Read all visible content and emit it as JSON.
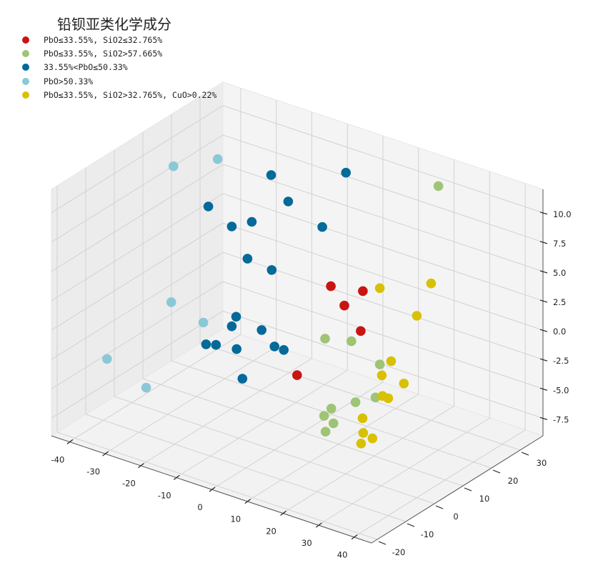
{
  "chart_data": {
    "type": "scatter3d",
    "title": "铅钡亚类化学成分",
    "axes": {
      "x": {
        "ticks": [
          -40,
          -30,
          -20,
          -10,
          0,
          10,
          20,
          30,
          40
        ]
      },
      "y": {
        "ticks": [
          -20,
          -10,
          0,
          10,
          20,
          30
        ]
      },
      "z": {
        "ticks": [
          "-7.5",
          "-5.0",
          "-2.5",
          "0.0",
          "2.5",
          "5.0",
          "7.5",
          "10.0"
        ]
      }
    },
    "grid": true,
    "legend_position": "top-left",
    "series": [
      {
        "name": "PbO≤33.55%, SiO2≤32.765%",
        "color": "#c81512",
        "points": [
          [
            -5,
            26,
            0.5
          ],
          [
            -2,
            27,
            -1.0
          ],
          [
            5,
            24,
            -2.0
          ],
          [
            4,
            26,
            1.0
          ],
          [
            8,
            -2,
            -1.5
          ]
        ]
      },
      {
        "name": "PbO≤33.55%, SiO2>57.665%",
        "color": "#9ec475",
        "points": [
          [
            12,
            5,
            -5.0
          ],
          [
            15,
            2,
            -5.5
          ],
          [
            18,
            6,
            -4.0
          ],
          [
            22,
            8,
            -3.5
          ],
          [
            -1,
            19,
            -2.5
          ],
          [
            8,
            17,
            -1.5
          ],
          [
            20,
            12,
            -1.5
          ],
          [
            18,
            -5,
            -3.5
          ],
          [
            16,
            -2,
            -5.5
          ],
          [
            18,
            35,
            10.0
          ]
        ]
      },
      {
        "name": "33.55%<PbO≤50.33%",
        "color": "#036a99",
        "points": [
          [
            -25,
            8,
            8.0
          ],
          [
            -20,
            10,
            6.5
          ],
          [
            -16,
            12,
            7.0
          ],
          [
            -12,
            14,
            3.0
          ],
          [
            -18,
            13,
            3.5
          ],
          [
            -5,
            23,
            6.0
          ],
          [
            -8,
            35,
            8.5
          ],
          [
            -17,
            26,
            6.5
          ],
          [
            -21,
            25,
            8.5
          ],
          [
            -22,
            14,
            -2.0
          ],
          [
            -20,
            10,
            -2.0
          ],
          [
            -10,
            8,
            -1.0
          ],
          [
            -8,
            10,
            -2.5
          ],
          [
            -7,
            12,
            -3.0
          ],
          [
            -13,
            5,
            -5.0
          ],
          [
            -16,
            -4,
            -1.0
          ],
          [
            -14,
            -3,
            -1.0
          ],
          [
            -9,
            -2,
            -1.0
          ]
        ]
      },
      {
        "name": "PbO>50.33%",
        "color": "#8ac8d8",
        "points": [
          [
            -38,
            12,
            9.5
          ],
          [
            -32,
            20,
            9.5
          ],
          [
            -33,
            5,
            -0.5
          ],
          [
            -28,
            10,
            -2.5
          ],
          [
            -35,
            -15,
            -2.5
          ],
          [
            -28,
            -10,
            -5.0
          ]
        ]
      },
      {
        "name": "PbO≤33.55%, SiO2>32.765%, CuO>0.22%",
        "color": "#d8c104",
        "points": [
          [
            20,
            12,
            5.0
          ],
          [
            28,
            15,
            3.0
          ],
          [
            28,
            20,
            5.0
          ],
          [
            28,
            6,
            0.5
          ],
          [
            27,
            4,
            -0.5
          ],
          [
            28,
            3,
            -2.0
          ],
          [
            28,
            5,
            -2.5
          ],
          [
            30,
            8,
            -1.5
          ],
          [
            24,
            1,
            -4.0
          ],
          [
            25,
            0,
            -5.0
          ],
          [
            26,
            -2,
            -5.5
          ],
          [
            30,
            -3,
            -4.5
          ]
        ]
      }
    ]
  }
}
